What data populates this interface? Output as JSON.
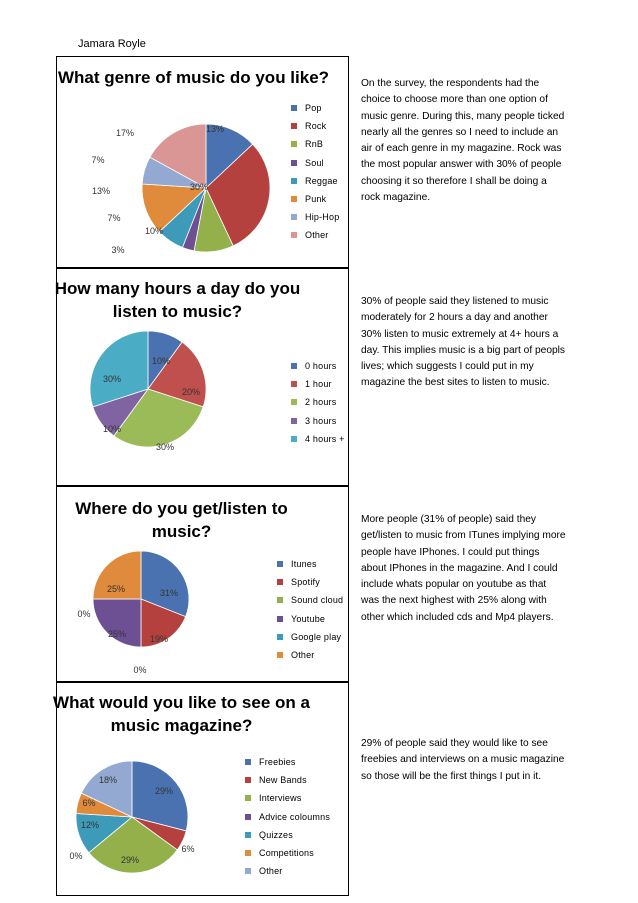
{
  "author": "Jamara Royle",
  "charts": [
    {
      "title": "What genre of music do you like?",
      "comment": "On the survey, the respondents had the choice to choose more than one option of music genre. During this, many people ticked nearly all the genres so I need to include an air of each genre in my magazine. Rock was the most popular answer with 30% of people choosing it so therefore I shall be doing a rock magazine."
    },
    {
      "title": "How many hours a day do you listen to music?",
      "comment": "30% of people said they listened to music moderately for 2 hours a day and another 30% listen to music extremely at 4+ hours a day. This implies music is a big part of peopls lives; which suggests I could put in my magazine the best sites to listen to music."
    },
    {
      "title": "Where do you get/listen to music?",
      "comment": "More people (31% of people) said they get/listen to music from ITunes implying more people have IPhones. I could put things about IPhones in the magazine. And I could include whats popular on youtube as that was the next highest with 25% along with other which included cds and Mp4 players."
    },
    {
      "title": "What would you like to see on a music magazine?",
      "comment": "29% of people said they would like to see freebies and interviews on a music magazine so those will be the first things I put in it."
    }
  ],
  "chart_data": [
    {
      "type": "pie",
      "title": "What genre of music do you like?",
      "categories": [
        "Pop",
        "Rock",
        "RnB",
        "Soul",
        "Reggae",
        "Punk",
        "Hip-Hop",
        "Other"
      ],
      "values": [
        13,
        30,
        10,
        3,
        7,
        13,
        7,
        17
      ],
      "labels": [
        "13%",
        "30%",
        "10%",
        "3%",
        "7%",
        "13%",
        "7%",
        "17%"
      ],
      "colors": [
        "#4a72b0",
        "#b5413e",
        "#93b04a",
        "#6d4f94",
        "#3d9ab8",
        "#e08a3c",
        "#93a9d1",
        "#d99694"
      ],
      "legend": "right"
    },
    {
      "type": "pie",
      "title": "How many hours a day do you listen to music?",
      "categories": [
        "0 hours",
        "1 hour",
        "2 hours",
        "3 hours",
        "4 hours +"
      ],
      "values": [
        10,
        20,
        30,
        10,
        30
      ],
      "labels": [
        "10%",
        "20%",
        "30%",
        "10%",
        "30%"
      ],
      "colors": [
        "#4a72b0",
        "#c0504d",
        "#9bbb59",
        "#8064a2",
        "#4bacc6"
      ],
      "legend": "right"
    },
    {
      "type": "pie",
      "title": "Where do you get/listen to music?",
      "categories": [
        "Itunes",
        "Spotify",
        "Sound cloud",
        "Youtube",
        "Google play",
        "Other"
      ],
      "values": [
        31,
        19,
        0,
        25,
        0,
        25
      ],
      "labels": [
        "31%",
        "19%",
        "0%",
        "25%",
        "0%",
        "25%"
      ],
      "colors": [
        "#4a72b0",
        "#b5413e",
        "#93b04a",
        "#6d4f94",
        "#3d9ab8",
        "#e08a3c"
      ],
      "legend": "right"
    },
    {
      "type": "pie",
      "title": "What would you like to see on a music magazine?",
      "categories": [
        "Freebies",
        "New Bands",
        "Interviews",
        "Advice coloumns",
        "Quizzes",
        "Competitions",
        "Other"
      ],
      "values": [
        29,
        6,
        29,
        0,
        12,
        6,
        18
      ],
      "labels": [
        "29%",
        "6%",
        "29%",
        "0%",
        "12%",
        "6%",
        "18%"
      ],
      "colors": [
        "#4a72b0",
        "#b5413e",
        "#93b04a",
        "#6d4f94",
        "#3d9ab8",
        "#e08a3c",
        "#93a9d1"
      ],
      "legend": "right"
    }
  ]
}
